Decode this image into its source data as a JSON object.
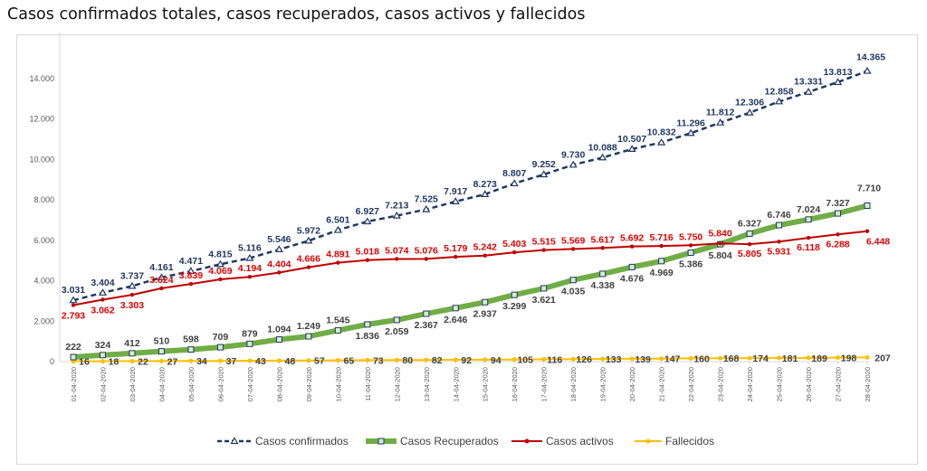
{
  "chart_data": {
    "type": "line",
    "title": "Casos confirmados totales, casos recuperados, casos activos y fallecidos",
    "xlabel": "",
    "ylabel": "",
    "ylim": [
      0,
      16000
    ],
    "yticks": [
      0,
      2000,
      4000,
      6000,
      8000,
      10000,
      12000,
      14000
    ],
    "ytick_labels": [
      "0",
      "2.000",
      "4.000",
      "6.000",
      "8.000",
      "10.000",
      "12.000",
      "14.000"
    ],
    "grid": false,
    "legend_position": "bottom",
    "categories": [
      "01-04-2020",
      "02-04-2020",
      "03-04-2020",
      "04-04-2020",
      "05-04-2020",
      "06-04-2020",
      "07-04-2020",
      "08-04-2020",
      "09-04-2020",
      "10-04-2020",
      "11-04-2020",
      "12-04-2020",
      "13-04-2020",
      "14-04-2020",
      "15-04-2020",
      "16-04-2020",
      "17-04-2020",
      "18-04-2020",
      "19-04-2020",
      "20-04-2020",
      "21-04-2020",
      "22-04-2020",
      "23-04-2020",
      "24-04-2020",
      "25-04-2020",
      "26-04-2020",
      "27-04-2020",
      "28-04-2020"
    ],
    "series": [
      {
        "name": "Casos confirmados",
        "color": "#1f3864",
        "style": "dashed",
        "values": [
          3031,
          3404,
          3737,
          4161,
          4471,
          4815,
          5116,
          5546,
          5972,
          6501,
          6927,
          7213,
          7525,
          7917,
          8273,
          8807,
          9252,
          9730,
          10088,
          10507,
          10832,
          11296,
          11812,
          12306,
          12858,
          13331,
          13813,
          14365
        ],
        "labels": [
          "3.031",
          "3.404",
          "3.737",
          "4.161",
          "4.471",
          "4.815",
          "5.116",
          "5.546",
          "5.972",
          "6.501",
          "6.927",
          "7.213",
          "7.525",
          "7.917",
          "8.273",
          "8.807",
          "9.252",
          "9.730",
          "10.088",
          "10.507",
          "10.832",
          "11.296",
          "11.812",
          "12.306",
          "12.858",
          "13.331",
          "13.813",
          "14.365"
        ]
      },
      {
        "name": "Casos Recuperados",
        "color": "#70ad47",
        "style": "thick",
        "values": [
          222,
          324,
          412,
          510,
          598,
          709,
          879,
          1094,
          1249,
          1545,
          1836,
          2059,
          2367,
          2646,
          2937,
          3299,
          3621,
          4035,
          4338,
          4676,
          4969,
          5386,
          5804,
          6327,
          6746,
          7024,
          7327,
          7710
        ],
        "labels": [
          "222",
          "324",
          "412",
          "510",
          "598",
          "709",
          "879",
          "1.094",
          "1.249",
          "1.545",
          "1.836",
          "2.059",
          "2.367",
          "2.646",
          "2.937",
          "3.299",
          "3.621",
          "4.035",
          "4.338",
          "4.676",
          "4.969",
          "5.386",
          "5.804",
          "6.327",
          "6.746",
          "7.024",
          "7.327",
          "7.710"
        ]
      },
      {
        "name": "Casos activos",
        "color": "#c00000",
        "style": "solid",
        "values": [
          2793,
          3062,
          3303,
          3624,
          3839,
          4069,
          4194,
          4404,
          4666,
          4891,
          5018,
          5074,
          5076,
          5179,
          5242,
          5403,
          5515,
          5569,
          5617,
          5692,
          5716,
          5750,
          5840,
          5805,
          5931,
          6118,
          6288,
          6448
        ],
        "labels": [
          "2.793",
          "3.062",
          "3.303",
          "3.624",
          "3.839",
          "4.069",
          "4.194",
          "4.404",
          "4.666",
          "4.891",
          "5.018",
          "5.074",
          "5.076",
          "5.179",
          "5.242",
          "5.403",
          "5.515",
          "5.569",
          "5.617",
          "5.692",
          "5.716",
          "5.750",
          "5.840",
          "5.805",
          "5.931",
          "6.118",
          "6.288",
          "6.448"
        ]
      },
      {
        "name": "Fallecidos",
        "color": "#ffc000",
        "style": "solid",
        "values": [
          16,
          18,
          22,
          27,
          34,
          37,
          43,
          48,
          57,
          65,
          73,
          80,
          82,
          92,
          94,
          105,
          116,
          126,
          133,
          139,
          147,
          160,
          168,
          174,
          181,
          189,
          198,
          207
        ],
        "labels": [
          "16",
          "18",
          "22",
          "27",
          "34",
          "37",
          "43",
          "48",
          "57",
          "65",
          "73",
          "80",
          "82",
          "92",
          "94",
          "105",
          "116",
          "126",
          "133",
          "139",
          "147",
          "160",
          "168",
          "174",
          "181",
          "189",
          "198",
          "207"
        ]
      }
    ]
  }
}
